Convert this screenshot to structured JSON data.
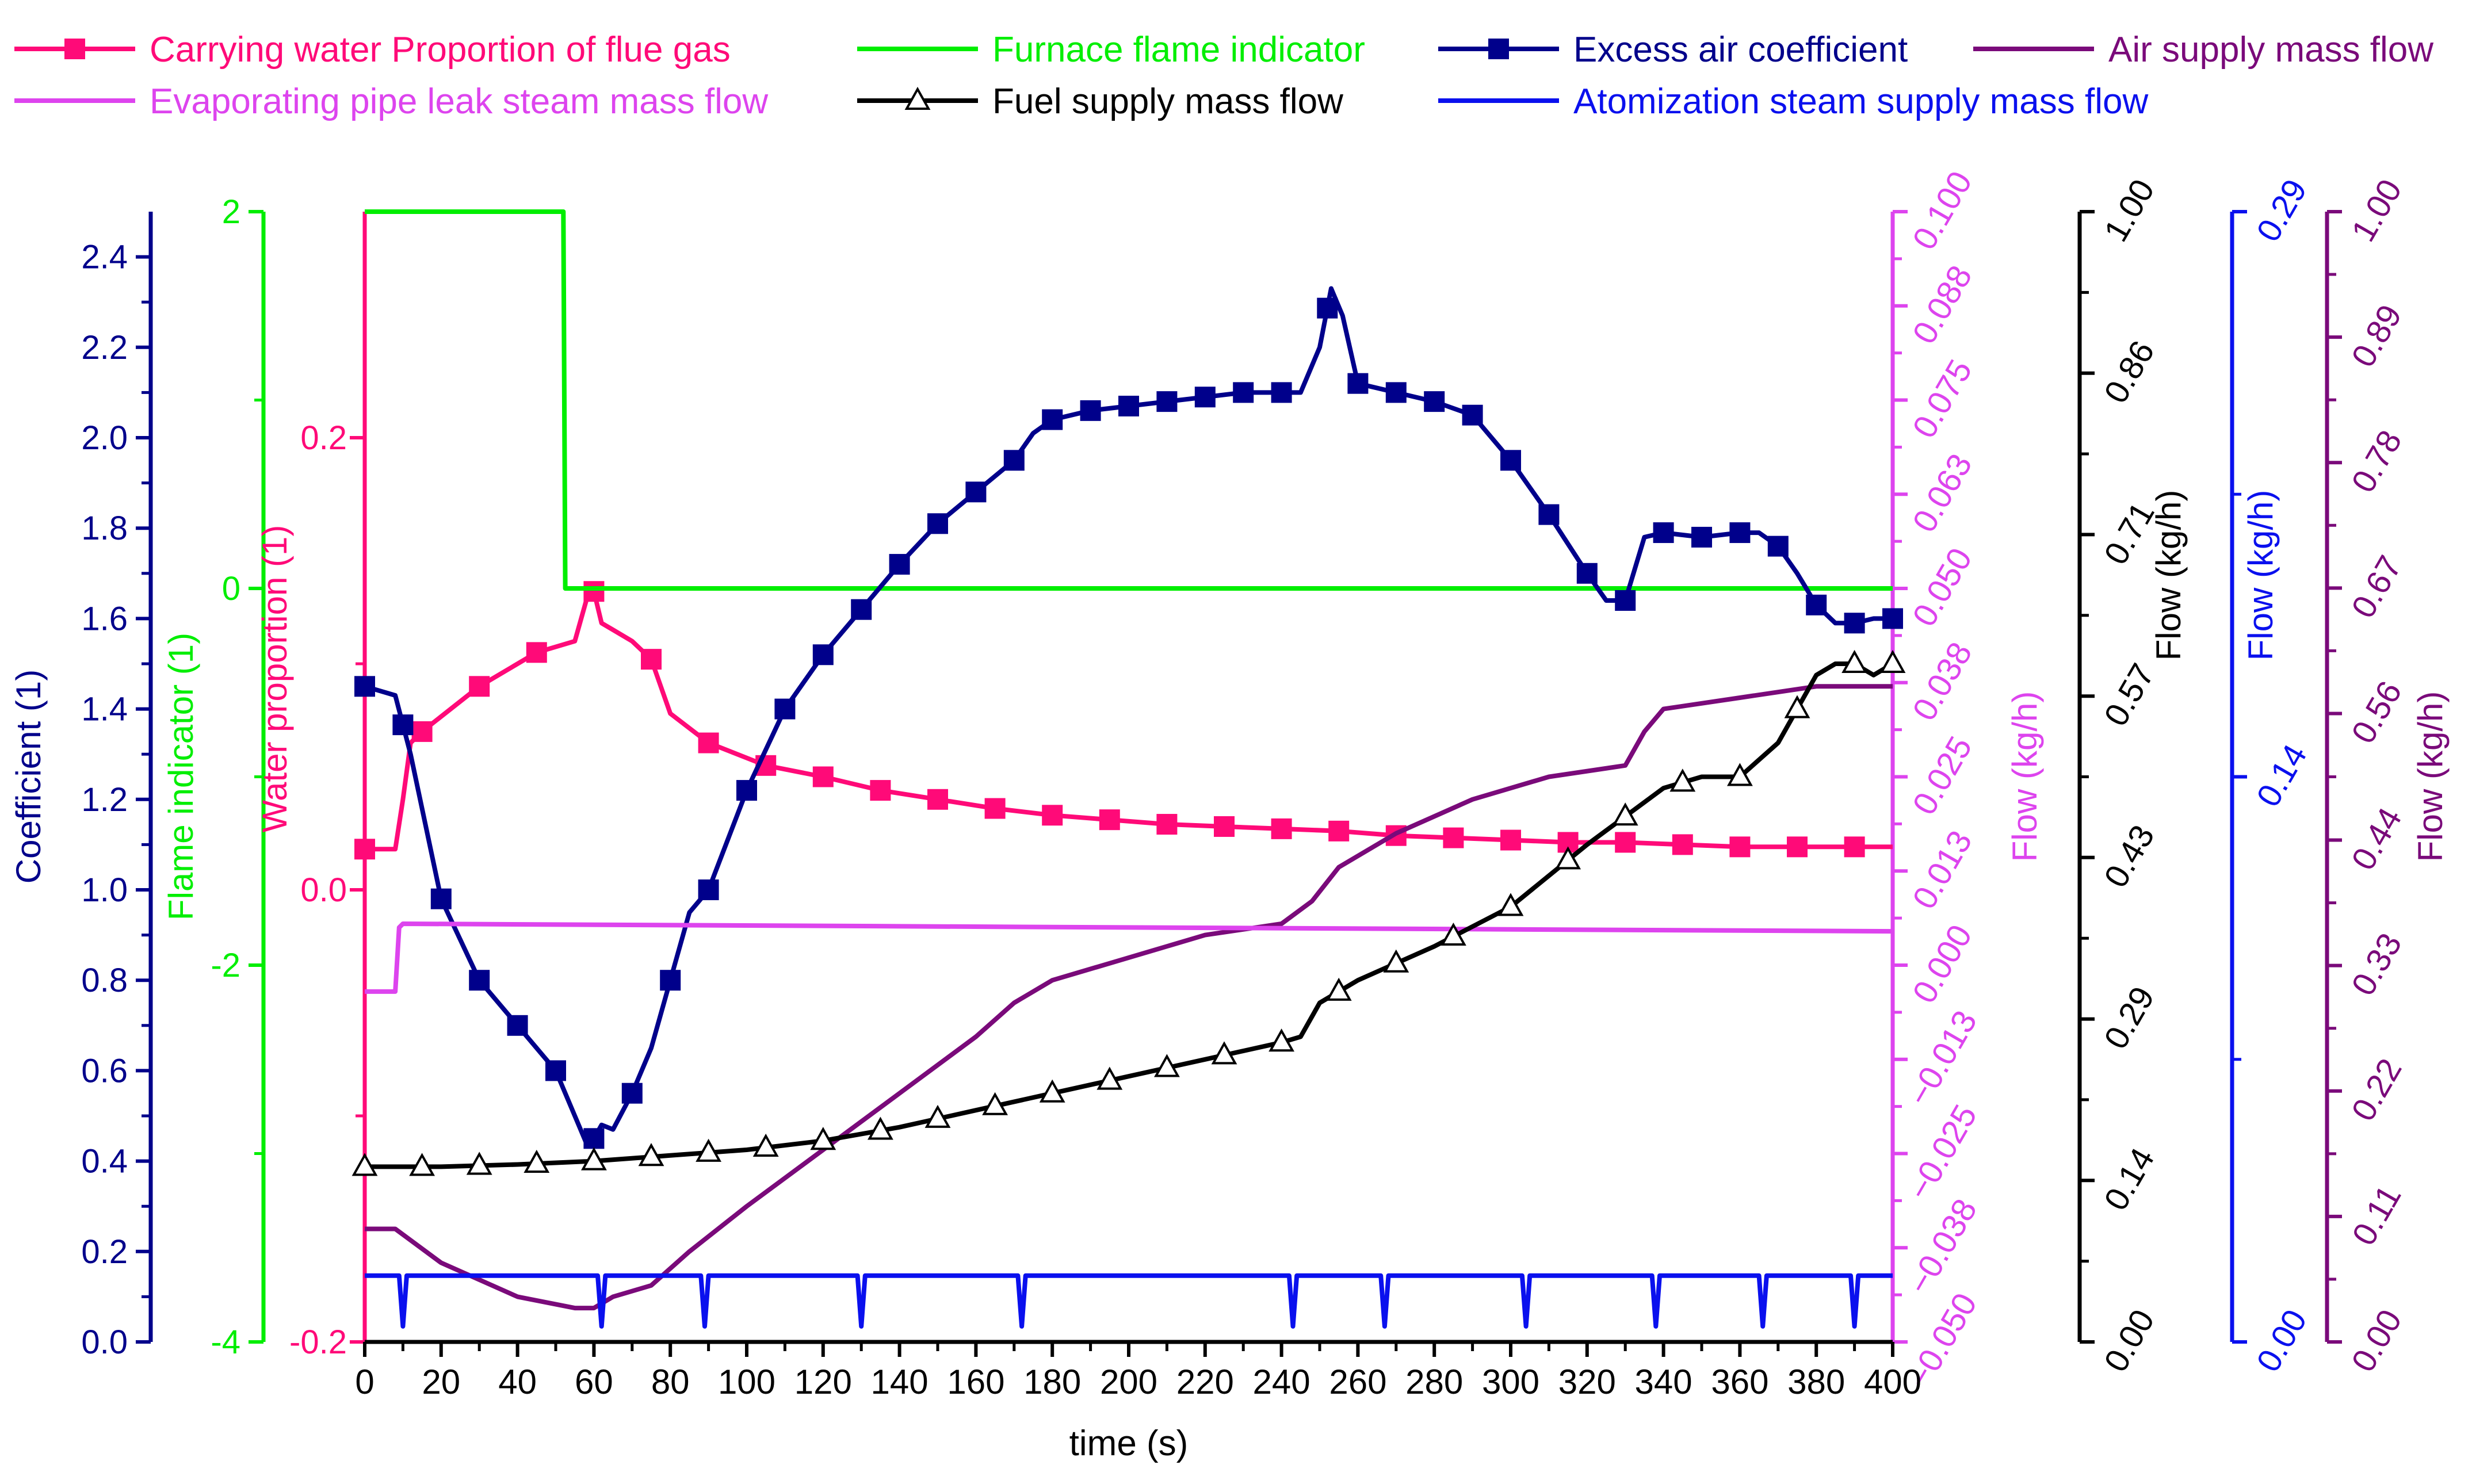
{
  "chart_data": {
    "type": "line",
    "title": "",
    "xlabel": "time (s)",
    "xlim": [
      0,
      400
    ],
    "x_ticks": [
      0,
      20,
      40,
      60,
      80,
      100,
      120,
      140,
      160,
      180,
      200,
      220,
      240,
      260,
      280,
      300,
      320,
      340,
      360,
      380,
      400
    ],
    "legend": {
      "placement": "top",
      "entries": [
        {
          "label": "Carrying water Proportion of flue gas",
          "series": "water"
        },
        {
          "label": "Furnace flame indicator",
          "series": "flame"
        },
        {
          "label": "Excess air coefficient",
          "series": "excess"
        },
        {
          "label": "Air supply mass flow",
          "series": "air"
        },
        {
          "label": "Evaporating pipe leak steam mass flow",
          "series": "leak"
        },
        {
          "label": "Fuel supply mass flow",
          "series": "fuel"
        },
        {
          "label": "Atomization steam supply mass flow",
          "series": "atom"
        }
      ]
    },
    "axes": [
      {
        "id": "coef",
        "side": "left",
        "label": "Coefficient (1)",
        "color": "#00008b",
        "range": [
          0,
          2.5
        ],
        "ticks": [
          "0.0",
          "0.2",
          "0.4",
          "0.6",
          "0.8",
          "1.0",
          "1.2",
          "1.4",
          "1.6",
          "1.8",
          "2.0",
          "2.2",
          "2.4"
        ],
        "tick_values": [
          0,
          0.2,
          0.4,
          0.6,
          0.8,
          1.0,
          1.2,
          1.4,
          1.6,
          1.8,
          2.0,
          2.2,
          2.4
        ]
      },
      {
        "id": "flame",
        "side": "left",
        "label": "Flame indicator (1)",
        "color": "#00ee00",
        "range": [
          -4,
          2
        ],
        "ticks": [
          "-4",
          "-2",
          "0",
          "2"
        ],
        "tick_values": [
          -4,
          -2,
          0,
          2
        ]
      },
      {
        "id": "water",
        "side": "left",
        "label": "Water proportion (1)",
        "color": "#ff0a78",
        "range": [
          -0.2,
          0.3
        ],
        "ticks": [
          "-0.2",
          "0.0",
          "0.2"
        ],
        "tick_values": [
          -0.2,
          0.0,
          0.2
        ]
      },
      {
        "id": "leak",
        "side": "right",
        "label": "Flow (kg/h)",
        "color": "#dd44ee",
        "range": [
          -0.05,
          0.1
        ],
        "ticks": [
          "−0.050",
          "−0.038",
          "−0.025",
          "−0.013",
          "0.000",
          "0.013",
          "0.025",
          "0.038",
          "0.050",
          "0.063",
          "0.075",
          "0.088",
          "0.100"
        ],
        "tick_values": [
          -0.05,
          -0.0375,
          -0.025,
          -0.0125,
          0,
          0.0125,
          0.025,
          0.0375,
          0.05,
          0.0625,
          0.075,
          0.0875,
          0.1
        ]
      },
      {
        "id": "fuel",
        "side": "right",
        "label": "Flow (kg/h)",
        "color": "#000000",
        "range": [
          0,
          1
        ],
        "ticks": [
          "0.00",
          "0.14",
          "0.29",
          "0.43",
          "0.57",
          "0.71",
          "0.86",
          "1.00"
        ],
        "tick_values": [
          0,
          0.1429,
          0.2857,
          0.4286,
          0.5714,
          0.7143,
          0.8571,
          1.0
        ]
      },
      {
        "id": "atom",
        "side": "right",
        "label": "Flow (kg/h)",
        "color": "#0a10ee",
        "range": [
          0,
          0.29
        ],
        "ticks": [
          "0.00",
          "0.14",
          "0.29"
        ],
        "tick_values": [
          0,
          0.145,
          0.29
        ]
      },
      {
        "id": "air",
        "side": "right",
        "label": "Flow (kg/h)",
        "color": "#7a0a7a",
        "range": [
          0,
          1
        ],
        "ticks": [
          "0.00",
          "0.11",
          "0.22",
          "0.33",
          "0.44",
          "0.56",
          "0.67",
          "0.78",
          "0.89",
          "1.00"
        ],
        "tick_values": [
          0,
          0.111,
          0.222,
          0.333,
          0.444,
          0.556,
          0.667,
          0.778,
          0.889,
          1.0
        ]
      }
    ],
    "series": [
      {
        "id": "water",
        "name": "Carrying water Proportion of flue gas",
        "axis": "water",
        "color": "#ff0a78",
        "marker": "square",
        "x": [
          0,
          8,
          10,
          12,
          15,
          30,
          45,
          55,
          58,
          60,
          62,
          65,
          70,
          75,
          80,
          90,
          105,
          120,
          135,
          150,
          165,
          180,
          195,
          210,
          225,
          240,
          255,
          270,
          285,
          300,
          315,
          330,
          345,
          360,
          375,
          390,
          400
        ],
        "y": [
          0.018,
          0.018,
          0.04,
          0.065,
          0.07,
          0.09,
          0.105,
          0.11,
          0.128,
          0.132,
          0.118,
          0.115,
          0.11,
          0.102,
          0.078,
          0.065,
          0.055,
          0.05,
          0.044,
          0.04,
          0.036,
          0.033,
          0.031,
          0.029,
          0.028,
          0.027,
          0.026,
          0.024,
          0.023,
          0.022,
          0.021,
          0.021,
          0.02,
          0.019,
          0.019,
          0.019,
          0.019
        ],
        "marker_x": [
          0,
          15,
          30,
          45,
          60,
          75,
          90,
          105,
          120,
          135,
          150,
          165,
          180,
          195,
          210,
          225,
          240,
          255,
          270,
          285,
          300,
          315,
          330,
          345,
          360,
          375,
          390
        ]
      },
      {
        "id": "flame",
        "name": "Furnace flame indicator",
        "axis": "flame",
        "color": "#00ee00",
        "marker": "none",
        "x": [
          0,
          52,
          52.5,
          400
        ],
        "y": [
          2.0,
          2.0,
          0.0,
          0.0
        ]
      },
      {
        "id": "excess",
        "name": "Excess air coefficient",
        "axis": "coef",
        "color": "#00008b",
        "marker": "square",
        "x": [
          0,
          8,
          12,
          20,
          30,
          40,
          50,
          55,
          58,
          60,
          62,
          65,
          70,
          75,
          80,
          85,
          90,
          100,
          110,
          120,
          130,
          140,
          150,
          160,
          170,
          175,
          180,
          190,
          200,
          210,
          220,
          230,
          240,
          245,
          250,
          253,
          256,
          260,
          270,
          280,
          290,
          300,
          310,
          320,
          325,
          330,
          335,
          340,
          350,
          360,
          365,
          370,
          375,
          380,
          385,
          390,
          395,
          400
        ],
        "y": [
          1.45,
          1.43,
          1.3,
          0.98,
          0.8,
          0.7,
          0.6,
          0.5,
          0.44,
          0.45,
          0.48,
          0.47,
          0.55,
          0.65,
          0.8,
          0.95,
          1.0,
          1.22,
          1.4,
          1.52,
          1.62,
          1.72,
          1.81,
          1.88,
          1.95,
          2.01,
          2.04,
          2.06,
          2.07,
          2.08,
          2.09,
          2.1,
          2.1,
          2.1,
          2.2,
          2.33,
          2.27,
          2.12,
          2.1,
          2.08,
          2.05,
          1.95,
          1.83,
          1.7,
          1.64,
          1.64,
          1.78,
          1.79,
          1.78,
          1.79,
          1.79,
          1.76,
          1.7,
          1.63,
          1.59,
          1.59,
          1.6,
          1.6
        ],
        "marker_x": [
          0,
          10,
          20,
          30,
          40,
          50,
          60,
          70,
          80,
          90,
          100,
          110,
          120,
          130,
          140,
          150,
          160,
          170,
          180,
          190,
          200,
          210,
          220,
          230,
          240,
          252,
          260,
          270,
          280,
          290,
          300,
          310,
          320,
          330,
          340,
          350,
          360,
          370,
          380,
          390,
          400
        ]
      },
      {
        "id": "air",
        "name": "Air supply mass flow",
        "axis": "air",
        "color": "#7a0a7a",
        "marker": "none",
        "x": [
          0,
          8,
          20,
          40,
          55,
          60,
          65,
          75,
          85,
          100,
          120,
          140,
          160,
          170,
          180,
          200,
          220,
          240,
          248,
          255,
          270,
          290,
          310,
          330,
          335,
          340,
          360,
          380,
          400
        ],
        "y": [
          0.1,
          0.1,
          0.07,
          0.04,
          0.03,
          0.03,
          0.04,
          0.05,
          0.08,
          0.12,
          0.17,
          0.22,
          0.27,
          0.3,
          0.32,
          0.34,
          0.36,
          0.37,
          0.39,
          0.42,
          0.45,
          0.48,
          0.5,
          0.51,
          0.54,
          0.56,
          0.57,
          0.58,
          0.58
        ]
      },
      {
        "id": "leak",
        "name": "Evaporating pipe leak steam mass flow",
        "axis": "leak",
        "color": "#dd44ee",
        "marker": "none",
        "x": [
          0,
          8,
          9,
          10,
          400
        ],
        "y": [
          -0.0035,
          -0.0035,
          0.005,
          0.0055,
          0.0045
        ]
      },
      {
        "id": "fuel",
        "name": "Fuel supply mass flow",
        "axis": "fuel",
        "color": "#000000",
        "marker": "triangle",
        "x": [
          0,
          20,
          40,
          60,
          80,
          100,
          120,
          140,
          160,
          180,
          200,
          220,
          240,
          245,
          250,
          260,
          280,
          300,
          320,
          330,
          340,
          350,
          360,
          370,
          380,
          385,
          390,
          395,
          400
        ],
        "y": [
          0.155,
          0.155,
          0.157,
          0.16,
          0.165,
          0.17,
          0.178,
          0.19,
          0.205,
          0.22,
          0.235,
          0.25,
          0.265,
          0.27,
          0.3,
          0.32,
          0.35,
          0.385,
          0.44,
          0.465,
          0.49,
          0.5,
          0.5,
          0.53,
          0.59,
          0.6,
          0.6,
          0.59,
          0.6
        ],
        "marker_x": [
          0,
          15,
          30,
          45,
          60,
          75,
          90,
          105,
          120,
          135,
          150,
          165,
          180,
          195,
          210,
          225,
          240,
          255,
          270,
          285,
          300,
          315,
          330,
          345,
          360,
          375,
          390,
          400
        ]
      },
      {
        "id": "atom",
        "name": "Atomization steam supply mass flow",
        "axis": "atom",
        "color": "#0a10ee",
        "marker": "none",
        "baseline": 0.017,
        "dip_depth": 0.013,
        "dips": [
          10,
          62,
          89,
          130,
          172,
          243,
          267,
          304,
          338,
          366,
          390
        ]
      }
    ]
  }
}
